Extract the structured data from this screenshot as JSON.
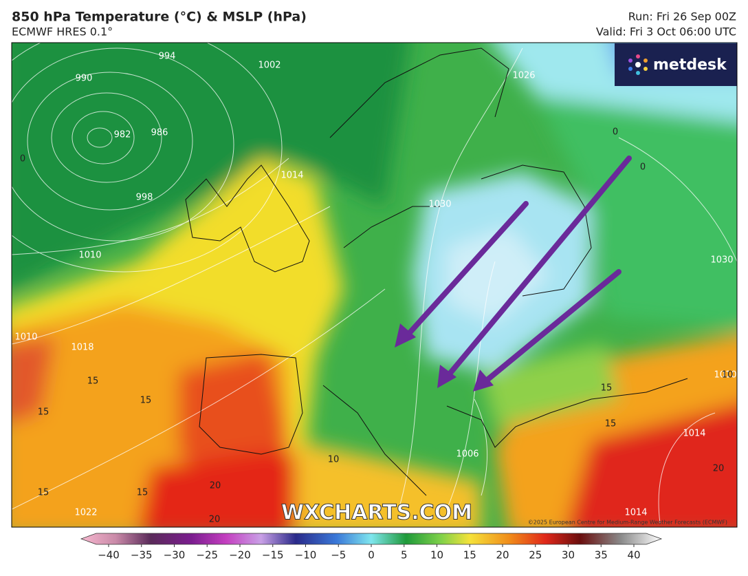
{
  "header": {
    "title": "850 hPa Temperature (°C) & MSLP (hPa)",
    "model": "ECMWF HRES 0.1°",
    "run": "Run: Fri 26 Sep 00Z",
    "valid": "Valid: Fri 3 Oct 06:00 UTC"
  },
  "map": {
    "logo": "metdesk",
    "watermark": "WXCHARTS.COM",
    "copyright": "©2025 European Centre for Medium-Range Weather Forecasts (ECMWF)",
    "isobar_labels": [
      "994",
      "990",
      "982",
      "986",
      "998",
      "1010",
      "1018",
      "1010",
      "1014",
      "1030",
      "1030",
      "1006",
      "1014",
      "1022",
      "1014",
      "1010",
      "1026",
      "1002"
    ],
    "temperature_labels": [
      "0",
      "0",
      "0",
      "15",
      "15",
      "15",
      "15",
      "15",
      "15",
      "10",
      "15",
      "20",
      "20",
      "20",
      "10"
    ]
  },
  "colorbar": {
    "ticks": [
      {
        "value": -40,
        "label": "−40"
      },
      {
        "value": -35,
        "label": "−35"
      },
      {
        "value": -30,
        "label": "−30"
      },
      {
        "value": -25,
        "label": "−25"
      },
      {
        "value": -20,
        "label": "−20"
      },
      {
        "value": -15,
        "label": "−15"
      },
      {
        "value": -10,
        "label": "−10"
      },
      {
        "value": -5,
        "label": "−5"
      },
      0,
      5,
      10,
      15,
      20,
      25,
      30,
      35,
      40
    ]
  }
}
